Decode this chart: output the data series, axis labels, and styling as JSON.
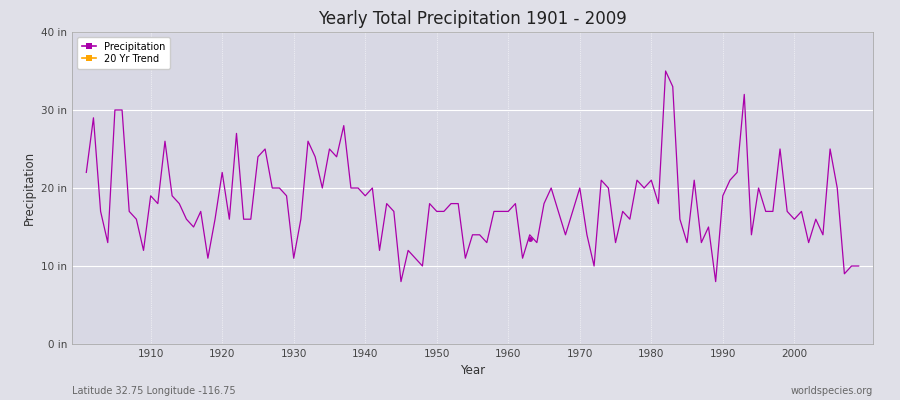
{
  "title": "Yearly Total Precipitation 1901 - 2009",
  "xlabel": "Year",
  "ylabel": "Precipitation",
  "lat_lon_label": "Latitude 32.75 Longitude -116.75",
  "source_label": "worldspecies.org",
  "ylim": [
    0,
    40
  ],
  "yticks": [
    0,
    10,
    20,
    30,
    40
  ],
  "ytick_labels": [
    "0 in",
    "10 in",
    "20 in",
    "30 in",
    "40 in"
  ],
  "xlim": [
    1899,
    2011
  ],
  "xticks": [
    1910,
    1920,
    1930,
    1940,
    1950,
    1960,
    1970,
    1980,
    1990,
    2000
  ],
  "line_color": "#AA00AA",
  "trend_color": "#FFA500",
  "fig_bg_color": "#E0E0E8",
  "plot_bg_color": "#D8D8E4",
  "grid_color_h": "#FFFFFF",
  "grid_color_v": "#FFFFFF",
  "years": [
    1901,
    1902,
    1903,
    1904,
    1905,
    1906,
    1907,
    1908,
    1909,
    1910,
    1911,
    1912,
    1913,
    1914,
    1915,
    1916,
    1917,
    1918,
    1919,
    1920,
    1921,
    1922,
    1923,
    1924,
    1925,
    1926,
    1927,
    1928,
    1929,
    1930,
    1931,
    1932,
    1933,
    1934,
    1935,
    1936,
    1937,
    1938,
    1939,
    1940,
    1941,
    1942,
    1943,
    1944,
    1945,
    1946,
    1947,
    1948,
    1949,
    1950,
    1951,
    1952,
    1953,
    1954,
    1955,
    1956,
    1957,
    1958,
    1959,
    1960,
    1961,
    1962,
    1963,
    1964,
    1965,
    1966,
    1967,
    1968,
    1969,
    1970,
    1971,
    1972,
    1973,
    1974,
    1975,
    1976,
    1977,
    1978,
    1979,
    1980,
    1981,
    1982,
    1983,
    1984,
    1985,
    1986,
    1987,
    1988,
    1989,
    1990,
    1991,
    1992,
    1993,
    1994,
    1995,
    1996,
    1997,
    1998,
    1999,
    2000,
    2001,
    2002,
    2003,
    2004,
    2005,
    2006,
    2007,
    2008,
    2009
  ],
  "precip": [
    22,
    29,
    17,
    13,
    30,
    30,
    17,
    16,
    12,
    19,
    18,
    26,
    19,
    18,
    16,
    15,
    17,
    11,
    16,
    22,
    16,
    27,
    16,
    16,
    24,
    25,
    20,
    20,
    19,
    11,
    16,
    26,
    24,
    20,
    25,
    24,
    28,
    20,
    20,
    19,
    20,
    12,
    18,
    17,
    8,
    12,
    11,
    10,
    18,
    17,
    17,
    18,
    18,
    11,
    14,
    14,
    13,
    17,
    17,
    17,
    18,
    11,
    14,
    13,
    18,
    20,
    17,
    14,
    17,
    20,
    14,
    10,
    21,
    20,
    13,
    17,
    16,
    21,
    20,
    21,
    18,
    35,
    33,
    16,
    13,
    21,
    13,
    15,
    8,
    19,
    21,
    22,
    32,
    14,
    20,
    17,
    17,
    25,
    17,
    16,
    17,
    13,
    16,
    14,
    25,
    20,
    9,
    10,
    10
  ],
  "gap_years": [
    1955,
    1956,
    1957,
    1958,
    1959,
    1960,
    1961,
    1962,
    1963,
    1964,
    1965,
    1966
  ],
  "isolated_dot_year": 1963,
  "isolated_dot_val": 13.5,
  "figsize": [
    9.0,
    4.0
  ],
  "dpi": 100
}
